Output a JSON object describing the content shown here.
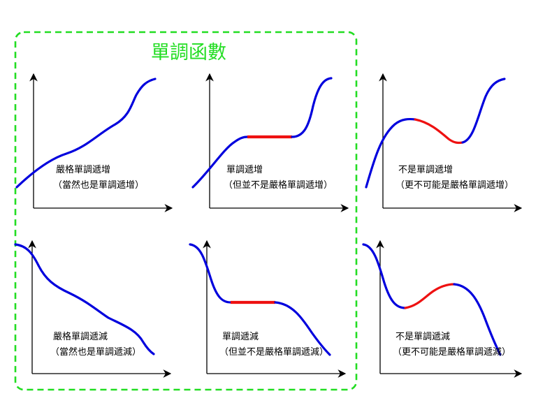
{
  "title": "單調函數",
  "colors": {
    "frame": "#22dd22",
    "curve": "#0000dd",
    "highlight": "#ee1111",
    "axis": "#000000"
  },
  "panels": [
    {
      "id": "strict-increasing",
      "line1": "嚴格單調遞增",
      "line2": "（當然也是單調遞增）"
    },
    {
      "id": "increasing",
      "line1": "單調遞增",
      "line2": "（但並不是嚴格單調遞增）"
    },
    {
      "id": "not-strict-increasing",
      "line1": "不是單調遞增",
      "line2": "（更不可能是嚴格單調遞增）"
    },
    {
      "id": "strict-decreasing",
      "line1": "嚴格單調遞減",
      "line2": "（當然也是單調遞減）"
    },
    {
      "id": "decreasing",
      "line1": "單調遞減",
      "line2": "（但並不是嚴格單調遞減）"
    },
    {
      "id": "not-strict-decreasing",
      "line1": "不是單調遞減",
      "line2": "（更不可能是嚴格單調遞減）"
    }
  ]
}
